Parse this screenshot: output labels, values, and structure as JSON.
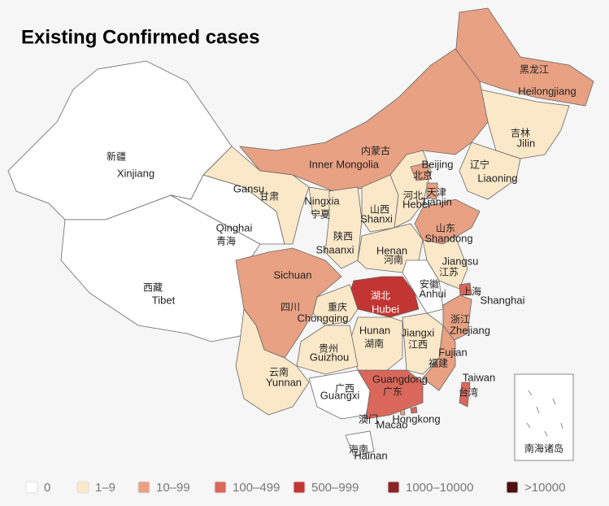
{
  "title": "Existing Confirmed cases",
  "inset_label": "南海诸岛",
  "legend": [
    {
      "label": "0",
      "color": "#ffffff"
    },
    {
      "label": "1–9",
      "color": "#fbe8c9"
    },
    {
      "label": "10–99",
      "color": "#e8a183"
    },
    {
      "label": "100–499",
      "color": "#d9675a"
    },
    {
      "label": "500–999",
      "color": "#c33532"
    },
    {
      "label": "1000–10000",
      "color": "#8b2528"
    },
    {
      "label": ">10000",
      "color": "#500f12"
    }
  ],
  "regions": [
    {
      "name": "Heilongjiang",
      "name_zh": "黑龙江",
      "color": "#e8a183"
    },
    {
      "name": "Jilin",
      "name_zh": "吉林",
      "color": "#fbe8c9"
    },
    {
      "name": "Liaoning",
      "name_zh": "辽宁",
      "color": "#fbe8c9"
    },
    {
      "name": "Inner Mongolia",
      "name_zh": "内蒙古",
      "color": "#e8a183"
    },
    {
      "name": "Xinjiang",
      "name_zh": "新疆",
      "color": "#ffffff"
    },
    {
      "name": "Tibet",
      "name_zh": "西藏",
      "color": "#ffffff"
    },
    {
      "name": "Qinghai",
      "name_zh": "青海",
      "color": "#ffffff"
    },
    {
      "name": "Gansu",
      "name_zh": "甘肃",
      "color": "#fbe8c9"
    },
    {
      "name": "Ningxia",
      "name_zh": "宁夏",
      "color": "#fbe8c9"
    },
    {
      "name": "Shaanxi",
      "name_zh": "陕西",
      "color": "#fbe8c9"
    },
    {
      "name": "Shanxi",
      "name_zh": "山西",
      "color": "#fbe8c9"
    },
    {
      "name": "Hebei",
      "name_zh": "河北",
      "color": "#fbe8c9"
    },
    {
      "name": "Beijing",
      "name_zh": "北京",
      "color": "#e8a183"
    },
    {
      "name": "Tianjin",
      "name_zh": "天津",
      "color": "#e8a183"
    },
    {
      "name": "Shandong",
      "name_zh": "山东",
      "color": "#e8a183"
    },
    {
      "name": "Henan",
      "name_zh": "河南",
      "color": "#fbe8c9"
    },
    {
      "name": "Jiangsu",
      "name_zh": "江苏",
      "color": "#fbe8c9"
    },
    {
      "name": "Anhui",
      "name_zh": "安徽",
      "color": "#ffffff"
    },
    {
      "name": "Shanghai",
      "name_zh": "上海",
      "color": "#d9675a"
    },
    {
      "name": "Zhejiang",
      "name_zh": "浙江",
      "color": "#e8a183"
    },
    {
      "name": "Hubei",
      "name_zh": "湖北",
      "color": "#c33532"
    },
    {
      "name": "Chongqing",
      "name_zh": "重庆",
      "color": "#fbe8c9"
    },
    {
      "name": "Sichuan",
      "name_zh": "四川",
      "color": "#e8a183"
    },
    {
      "name": "Hunan",
      "name_zh": "湖南",
      "color": "#fbe8c9"
    },
    {
      "name": "Jiangxi",
      "name_zh": "江西",
      "color": "#fbe8c9"
    },
    {
      "name": "Fujian",
      "name_zh": "福建",
      "color": "#e8a183"
    },
    {
      "name": "Guizhou",
      "name_zh": "贵州",
      "color": "#fbe8c9"
    },
    {
      "name": "Yunnan",
      "name_zh": "云南",
      "color": "#fbe8c9"
    },
    {
      "name": "Guangxi",
      "name_zh": "广西",
      "color": "#ffffff"
    },
    {
      "name": "Guangdong",
      "name_zh": "广东",
      "color": "#d9675a"
    },
    {
      "name": "Hainan",
      "name_zh": "海南",
      "color": "#ffffff"
    },
    {
      "name": "Taiwan",
      "name_zh": "台湾",
      "color": "#d9675a"
    },
    {
      "name": "Hongkong",
      "color": "#d9675a"
    },
    {
      "name": "Macao",
      "name_zh": "澳门",
      "color": "#e8a183"
    }
  ]
}
